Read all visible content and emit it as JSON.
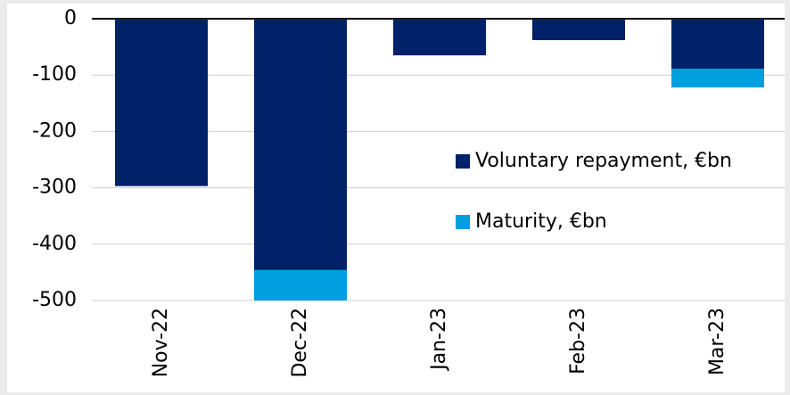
{
  "chart_data": {
    "type": "bar",
    "stacked": true,
    "categories": [
      "Nov-22",
      "Dec-22",
      "Jan-23",
      "Feb-23",
      "Mar-23"
    ],
    "series": [
      {
        "name": "Voluntary repayment, €bn",
        "color": "#012169",
        "values": [
          -297,
          -446,
          -65,
          -38,
          -89
        ]
      },
      {
        "name": "Maturity, €bn",
        "color": "#009fdf",
        "values": [
          0,
          -54,
          0,
          0,
          -33
        ]
      }
    ],
    "ylim": [
      -500,
      0
    ],
    "yticks": [
      0,
      -100,
      -200,
      -300,
      -400,
      -500
    ],
    "grid": true
  }
}
